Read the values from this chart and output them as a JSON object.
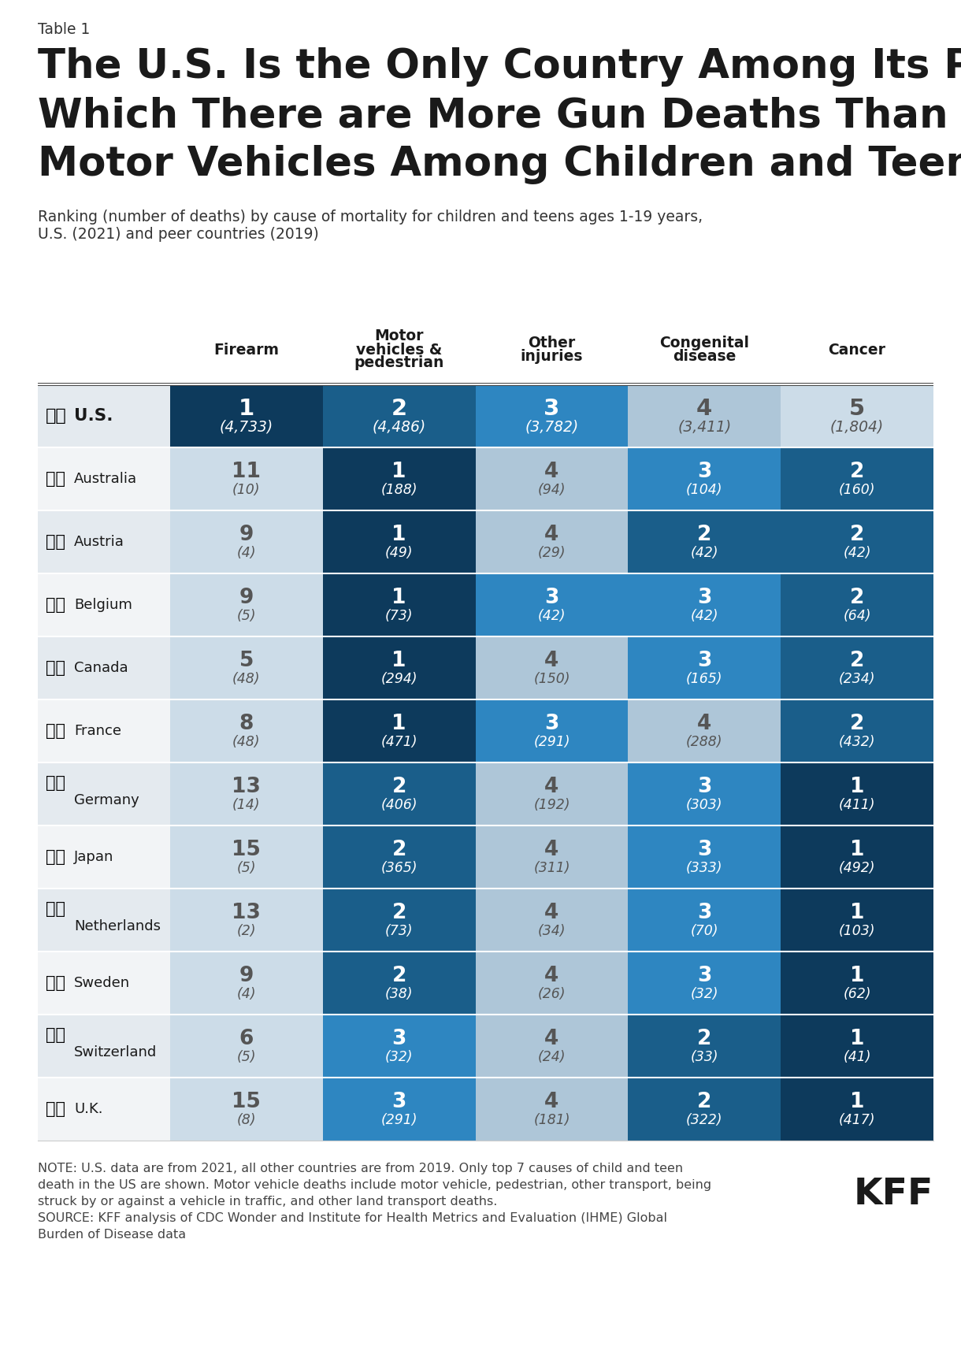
{
  "table_label": "Table 1",
  "title_line1": "The U.S. Is the Only Country Among Its Peers In",
  "title_line2": "Which There are More Gun Deaths Than Cancer or",
  "title_line3": "Motor Vehicles Among Children and Teens",
  "subtitle_line1": "Ranking (number of deaths) by cause of mortality for children and teens ages 1-19 years,",
  "subtitle_line2": "U.S. (2021) and peer countries (2019)",
  "col_headers": [
    [
      "Firearm"
    ],
    [
      "Motor",
      "vehicles &",
      "pedestrian"
    ],
    [
      "Other",
      "injuries"
    ],
    [
      "Congenital",
      "disease"
    ],
    [
      "Cancer"
    ]
  ],
  "countries": [
    "U.S.",
    "Australia",
    "Austria",
    "Belgium",
    "Canada",
    "France",
    "Germany",
    "Japan",
    "Netherlands",
    "Sweden",
    "Switzerland",
    "U.K."
  ],
  "data": [
    [
      [
        "1",
        "(4,733)"
      ],
      [
        "2",
        "(4,486)"
      ],
      [
        "3",
        "(3,782)"
      ],
      [
        "4",
        "(3,411)"
      ],
      [
        "5",
        "(1,804)"
      ]
    ],
    [
      [
        "11",
        "(10)"
      ],
      [
        "1",
        "(188)"
      ],
      [
        "4",
        "(94)"
      ],
      [
        "3",
        "(104)"
      ],
      [
        "2",
        "(160)"
      ]
    ],
    [
      [
        "9",
        "(4)"
      ],
      [
        "1",
        "(49)"
      ],
      [
        "4",
        "(29)"
      ],
      [
        "2",
        "(42)"
      ],
      [
        "2",
        "(42)"
      ]
    ],
    [
      [
        "9",
        "(5)"
      ],
      [
        "1",
        "(73)"
      ],
      [
        "3",
        "(42)"
      ],
      [
        "3",
        "(42)"
      ],
      [
        "2",
        "(64)"
      ]
    ],
    [
      [
        "5",
        "(48)"
      ],
      [
        "1",
        "(294)"
      ],
      [
        "4",
        "(150)"
      ],
      [
        "3",
        "(165)"
      ],
      [
        "2",
        "(234)"
      ]
    ],
    [
      [
        "8",
        "(48)"
      ],
      [
        "1",
        "(471)"
      ],
      [
        "3",
        "(291)"
      ],
      [
        "4",
        "(288)"
      ],
      [
        "2",
        "(432)"
      ]
    ],
    [
      [
        "13",
        "(14)"
      ],
      [
        "2",
        "(406)"
      ],
      [
        "4",
        "(192)"
      ],
      [
        "3",
        "(303)"
      ],
      [
        "1",
        "(411)"
      ]
    ],
    [
      [
        "15",
        "(5)"
      ],
      [
        "2",
        "(365)"
      ],
      [
        "4",
        "(311)"
      ],
      [
        "3",
        "(333)"
      ],
      [
        "1",
        "(492)"
      ]
    ],
    [
      [
        "13",
        "(2)"
      ],
      [
        "2",
        "(73)"
      ],
      [
        "4",
        "(34)"
      ],
      [
        "3",
        "(70)"
      ],
      [
        "1",
        "(103)"
      ]
    ],
    [
      [
        "9",
        "(4)"
      ],
      [
        "2",
        "(38)"
      ],
      [
        "4",
        "(26)"
      ],
      [
        "3",
        "(32)"
      ],
      [
        "1",
        "(62)"
      ]
    ],
    [
      [
        "6",
        "(5)"
      ],
      [
        "3",
        "(32)"
      ],
      [
        "4",
        "(24)"
      ],
      [
        "2",
        "(33)"
      ],
      [
        "1",
        "(41)"
      ]
    ],
    [
      [
        "15",
        "(8)"
      ],
      [
        "3",
        "(291)"
      ],
      [
        "4",
        "(181)"
      ],
      [
        "2",
        "(322)"
      ],
      [
        "1",
        "(417)"
      ]
    ]
  ],
  "rank_values": [
    [
      1,
      2,
      3,
      4,
      5
    ],
    [
      11,
      1,
      4,
      3,
      2
    ],
    [
      9,
      1,
      4,
      2,
      2
    ],
    [
      9,
      1,
      3,
      3,
      2
    ],
    [
      5,
      1,
      4,
      3,
      2
    ],
    [
      8,
      1,
      3,
      4,
      2
    ],
    [
      13,
      2,
      4,
      3,
      1
    ],
    [
      15,
      2,
      4,
      3,
      1
    ],
    [
      13,
      2,
      4,
      3,
      1
    ],
    [
      9,
      2,
      4,
      3,
      1
    ],
    [
      6,
      3,
      4,
      2,
      1
    ],
    [
      15,
      3,
      4,
      2,
      1
    ]
  ],
  "note_lines": [
    "NOTE: U.S. data are from 2021, all other countries are from 2019. Only top 7 causes of child and teen",
    "death in the US are shown. Motor vehicle deaths include motor vehicle, pedestrian, other transport, being",
    "struck by or against a vehicle in traffic, and other land transport deaths.",
    "SOURCE: KFF analysis of CDC Wonder and Institute for Health Metrics and Evaluation (IHME) Global",
    "Burden of Disease data"
  ],
  "color_dark_navy": "#0d3a5c",
  "color_dark_blue": "#1a5e8a",
  "color_medium_blue": "#2e86c1",
  "color_light_blue": "#aec6d8",
  "color_lighter_blue": "#ccdce8",
  "color_lightest_blue": "#ddeaf3",
  "bg_color": "#ffffff",
  "row_bg_light": "#f2f4f6",
  "row_bg_dark": "#e4eaef"
}
